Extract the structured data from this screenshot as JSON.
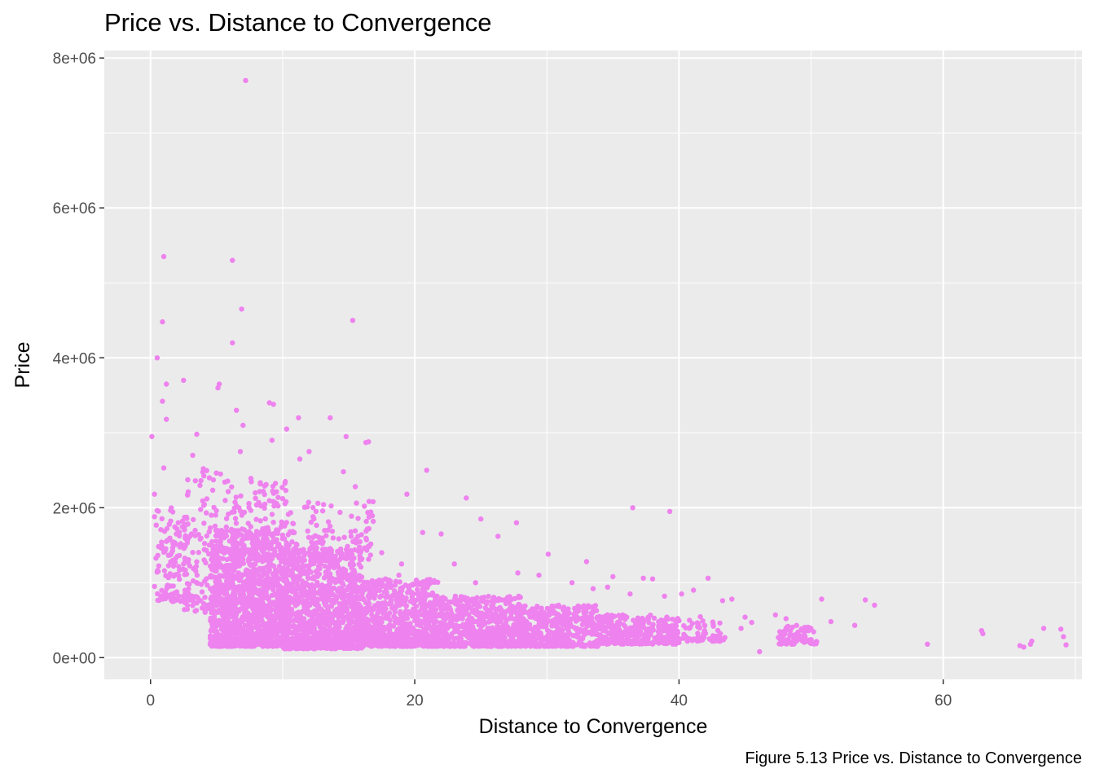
{
  "chart_data": {
    "type": "scatter",
    "title": "Price vs. Distance to Convergence",
    "xlabel": "Distance to Convergence",
    "ylabel": "Price",
    "caption": "Figure 5.13 Price vs. Distance to Convergence",
    "xlim": [
      -3.5,
      70.5
    ],
    "ylim": [
      -290000,
      8100000
    ],
    "x_ticks": [
      0,
      20,
      40,
      60
    ],
    "x_tick_labels": [
      "0",
      "20",
      "40",
      "60"
    ],
    "y_ticks": [
      0,
      2000000,
      4000000,
      6000000,
      8000000
    ],
    "y_tick_labels": [
      "0e+00",
      "2e+06",
      "4e+06",
      "6e+06",
      "8e+06"
    ],
    "grid": true,
    "colors": {
      "point": "#EE82EE",
      "panel": "#EBEBEB",
      "grid": "#FFFFFF",
      "axis_text": "#4D4D4D"
    },
    "points": [
      [
        7.2,
        7700000
      ],
      [
        1.0,
        5350000
      ],
      [
        6.2,
        5300000
      ],
      [
        6.9,
        4650000
      ],
      [
        0.9,
        4480000
      ],
      [
        15.3,
        4500000
      ],
      [
        6.2,
        4200000
      ],
      [
        0.5,
        4000000
      ],
      [
        2.5,
        3700000
      ],
      [
        1.2,
        3650000
      ],
      [
        5.2,
        3650000
      ],
      [
        5.1,
        3600000
      ],
      [
        0.9,
        3420000
      ],
      [
        9.0,
        3400000
      ],
      [
        9.3,
        3380000
      ],
      [
        6.5,
        3300000
      ],
      [
        11.2,
        3200000
      ],
      [
        13.6,
        3200000
      ],
      [
        1.2,
        3180000
      ],
      [
        10.3,
        3050000
      ],
      [
        7.0,
        3100000
      ],
      [
        9.2,
        2900000
      ],
      [
        14.8,
        2950000
      ],
      [
        0.1,
        2950000
      ],
      [
        3.5,
        2980000
      ],
      [
        16.5,
        2880000
      ],
      [
        16.3,
        2870000
      ],
      [
        12.0,
        2750000
      ],
      [
        11.3,
        2650000
      ],
      [
        3.2,
        2700000
      ],
      [
        6.8,
        2750000
      ],
      [
        14.6,
        2480000
      ],
      [
        20.9,
        2500000
      ],
      [
        10.2,
        2350000
      ],
      [
        1.0,
        2530000
      ],
      [
        15.5,
        2280000
      ],
      [
        5.3,
        2450000
      ],
      [
        4.0,
        2520000
      ],
      [
        23.9,
        2130000
      ],
      [
        19.4,
        2180000
      ],
      [
        0.3,
        2180000
      ],
      [
        36.5,
        2000000
      ],
      [
        39.3,
        1950000
      ],
      [
        25.0,
        1850000
      ],
      [
        27.7,
        1800000
      ],
      [
        22.0,
        1650000
      ],
      [
        20.6,
        1670000
      ],
      [
        26.3,
        1620000
      ],
      [
        30.1,
        1380000
      ],
      [
        33.0,
        1280000
      ],
      [
        27.8,
        1130000
      ],
      [
        29.4,
        1100000
      ],
      [
        35.0,
        1080000
      ],
      [
        37.3,
        1060000
      ],
      [
        38.0,
        1050000
      ],
      [
        42.2,
        1060000
      ],
      [
        41.1,
        900000
      ],
      [
        40.2,
        850000
      ],
      [
        44.0,
        780000
      ],
      [
        45.0,
        540000
      ],
      [
        46.1,
        80000
      ],
      [
        47.3,
        570000
      ],
      [
        48.1,
        520000
      ],
      [
        50.8,
        780000
      ],
      [
        51.5,
        480000
      ],
      [
        53.3,
        430000
      ],
      [
        54.1,
        770000
      ],
      [
        54.8,
        700000
      ],
      [
        58.8,
        180000
      ],
      [
        62.9,
        360000
      ],
      [
        63.0,
        320000
      ],
      [
        65.8,
        160000
      ],
      [
        66.1,
        140000
      ],
      [
        66.6,
        180000
      ],
      [
        66.7,
        220000
      ],
      [
        67.6,
        390000
      ],
      [
        68.9,
        380000
      ],
      [
        69.1,
        280000
      ],
      [
        69.3,
        170000
      ],
      [
        0.3,
        950000
      ],
      [
        0.3,
        1880000
      ],
      [
        1.2,
        1550000
      ],
      [
        2.1,
        1800000
      ],
      [
        1.6,
        1400000
      ],
      [
        2.5,
        1250000
      ],
      [
        3.1,
        1650000
      ],
      [
        3.8,
        760000
      ],
      [
        4.6,
        1900000
      ],
      [
        5.8,
        250000
      ],
      [
        5.9,
        180000
      ],
      [
        12.3,
        1880000
      ],
      [
        13.0,
        1520000
      ],
      [
        15.7,
        1620000
      ],
      [
        17.5,
        1400000
      ],
      [
        19.0,
        1250000
      ],
      [
        23.0,
        1250000
      ],
      [
        18.8,
        1100000
      ],
      [
        24.6,
        1000000
      ],
      [
        31.9,
        1000000
      ],
      [
        33.5,
        920000
      ],
      [
        34.6,
        940000
      ],
      [
        36.3,
        850000
      ],
      [
        38.9,
        820000
      ],
      [
        43.3,
        760000
      ],
      [
        44.7,
        390000
      ],
      [
        45.5,
        470000
      ],
      [
        48.5,
        300000
      ],
      [
        49.3,
        270000
      ],
      [
        50.0,
        240000
      ],
      [
        49.8,
        360000
      ],
      [
        48.9,
        430000
      ],
      [
        47.8,
        260000
      ],
      [
        43.0,
        260000
      ],
      [
        41.9,
        270000
      ],
      [
        42.6,
        420000
      ]
    ],
    "density": [
      {
        "x0": 0.4,
        "x1": 3.0,
        "y0": 750000,
        "y1": 2000000,
        "n": 140
      },
      {
        "x0": 2.5,
        "x1": 5.0,
        "y0": 600000,
        "y1": 2500000,
        "n": 110
      },
      {
        "x0": 4.5,
        "x1": 10.0,
        "y0": 150000,
        "y1": 1700000,
        "n": 1200
      },
      {
        "x0": 5.5,
        "x1": 11.0,
        "y0": 1300000,
        "y1": 2400000,
        "n": 160
      },
      {
        "x0": 10.0,
        "x1": 16.0,
        "y0": 120000,
        "y1": 1450000,
        "n": 1150
      },
      {
        "x0": 11.0,
        "x1": 17.0,
        "y0": 1300000,
        "y1": 2100000,
        "n": 100
      },
      {
        "x0": 16.0,
        "x1": 22.0,
        "y0": 150000,
        "y1": 1050000,
        "n": 750
      },
      {
        "x0": 22.0,
        "x1": 28.0,
        "y0": 150000,
        "y1": 820000,
        "n": 550
      },
      {
        "x0": 28.0,
        "x1": 34.0,
        "y0": 150000,
        "y1": 700000,
        "n": 430
      },
      {
        "x0": 34.0,
        "x1": 40.0,
        "y0": 180000,
        "y1": 580000,
        "n": 330
      },
      {
        "x0": 40.0,
        "x1": 43.5,
        "y0": 220000,
        "y1": 550000,
        "n": 55
      },
      {
        "x0": 47.5,
        "x1": 50.5,
        "y0": 180000,
        "y1": 420000,
        "n": 70
      }
    ]
  }
}
